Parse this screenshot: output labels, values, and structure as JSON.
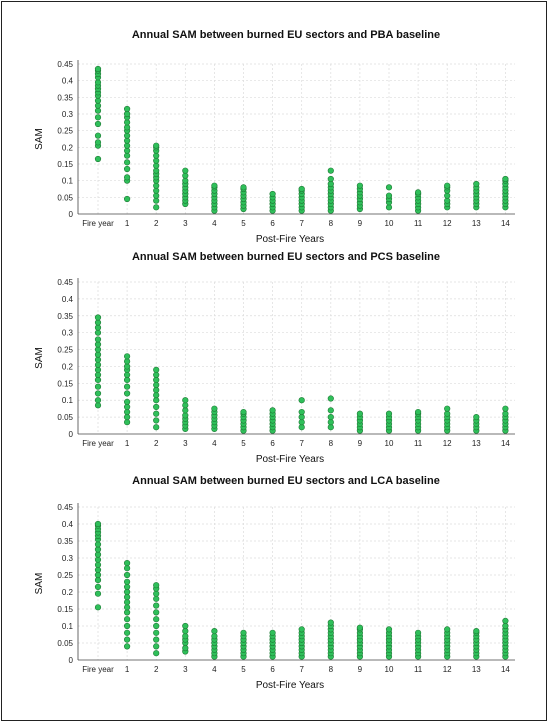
{
  "chart_data": [
    {
      "type": "scatter",
      "title": "Annual SAM between burned EU sectors and PBA baseline",
      "xlabel": "Post-Fire Years",
      "ylabel": "SAM",
      "categories": [
        "Fire year",
        "1",
        "2",
        "3",
        "4",
        "5",
        "6",
        "7",
        "8",
        "9",
        "10",
        "11",
        "12",
        "13",
        "14"
      ],
      "y_ticks": [
        "0",
        "0.05",
        "0.1",
        "0.15",
        "0.2",
        "0.25",
        "0.3",
        "0.35",
        "0.4",
        "0.45"
      ],
      "ylim": [
        0,
        0.45
      ],
      "grid": true,
      "points": [
        [
          0.165,
          0.205,
          0.215,
          0.235,
          0.27,
          0.29,
          0.31,
          0.325,
          0.34,
          0.355,
          0.365,
          0.375,
          0.385,
          0.395,
          0.41,
          0.42,
          0.43,
          0.435
        ],
        [
          0.045,
          0.1,
          0.11,
          0.135,
          0.155,
          0.175,
          0.19,
          0.205,
          0.22,
          0.235,
          0.25,
          0.26,
          0.275,
          0.29,
          0.3,
          0.315
        ],
        [
          0.02,
          0.04,
          0.055,
          0.07,
          0.085,
          0.1,
          0.11,
          0.12,
          0.13,
          0.145,
          0.16,
          0.175,
          0.19,
          0.2,
          0.205
        ],
        [
          0.03,
          0.04,
          0.05,
          0.06,
          0.07,
          0.08,
          0.09,
          0.1,
          0.115,
          0.13
        ],
        [
          0.01,
          0.02,
          0.03,
          0.04,
          0.05,
          0.06,
          0.07,
          0.08,
          0.085
        ],
        [
          0.015,
          0.025,
          0.035,
          0.045,
          0.055,
          0.065,
          0.075,
          0.08
        ],
        [
          0.01,
          0.02,
          0.03,
          0.04,
          0.05,
          0.06
        ],
        [
          0.01,
          0.02,
          0.03,
          0.04,
          0.05,
          0.06,
          0.07,
          0.075
        ],
        [
          0.01,
          0.02,
          0.03,
          0.04,
          0.05,
          0.06,
          0.07,
          0.08,
          0.09,
          0.105,
          0.13
        ],
        [
          0.015,
          0.025,
          0.035,
          0.045,
          0.055,
          0.065,
          0.075,
          0.085
        ],
        [
          0.02,
          0.035,
          0.045,
          0.055,
          0.08
        ],
        [
          0.01,
          0.02,
          0.03,
          0.04,
          0.05,
          0.06,
          0.065
        ],
        [
          0.02,
          0.03,
          0.04,
          0.055,
          0.07,
          0.08,
          0.085
        ],
        [
          0.02,
          0.03,
          0.04,
          0.05,
          0.06,
          0.07,
          0.08,
          0.09
        ],
        [
          0.02,
          0.03,
          0.04,
          0.05,
          0.06,
          0.07,
          0.08,
          0.09,
          0.1,
          0.105
        ]
      ]
    },
    {
      "type": "scatter",
      "title": "Annual SAM between burned EU sectors and PCS baseline",
      "xlabel": "Post-Fire Years",
      "ylabel": "SAM",
      "categories": [
        "Fire year",
        "1",
        "2",
        "3",
        "4",
        "5",
        "6",
        "7",
        "8",
        "9",
        "10",
        "11",
        "12",
        "13",
        "14"
      ],
      "y_ticks": [
        "0",
        "0.05",
        "0.1",
        "0.15",
        "0.2",
        "0.25",
        "0.3",
        "0.35",
        "0.4",
        "0.45"
      ],
      "ylim": [
        0,
        0.45
      ],
      "grid": true,
      "points": [
        [
          0.085,
          0.1,
          0.12,
          0.14,
          0.16,
          0.175,
          0.19,
          0.205,
          0.22,
          0.235,
          0.25,
          0.265,
          0.28,
          0.3,
          0.315,
          0.33,
          0.345
        ],
        [
          0.035,
          0.05,
          0.065,
          0.08,
          0.095,
          0.12,
          0.14,
          0.16,
          0.175,
          0.19,
          0.2,
          0.215,
          0.23
        ],
        [
          0.02,
          0.04,
          0.06,
          0.08,
          0.1,
          0.115,
          0.13,
          0.145,
          0.16,
          0.175,
          0.19
        ],
        [
          0.015,
          0.025,
          0.035,
          0.045,
          0.055,
          0.07,
          0.085,
          0.1
        ],
        [
          0.015,
          0.025,
          0.035,
          0.045,
          0.055,
          0.065,
          0.075
        ],
        [
          0.01,
          0.02,
          0.03,
          0.04,
          0.05,
          0.06,
          0.065
        ],
        [
          0.01,
          0.02,
          0.03,
          0.04,
          0.05,
          0.06,
          0.07
        ],
        [
          0.02,
          0.035,
          0.05,
          0.065,
          0.1
        ],
        [
          0.02,
          0.035,
          0.05,
          0.07,
          0.105
        ],
        [
          0.01,
          0.02,
          0.03,
          0.04,
          0.05,
          0.06
        ],
        [
          0.01,
          0.02,
          0.03,
          0.04,
          0.05,
          0.06
        ],
        [
          0.01,
          0.02,
          0.03,
          0.04,
          0.05,
          0.06,
          0.065
        ],
        [
          0.01,
          0.02,
          0.03,
          0.04,
          0.05,
          0.06,
          0.075
        ],
        [
          0.01,
          0.02,
          0.03,
          0.04,
          0.05
        ],
        [
          0.01,
          0.02,
          0.03,
          0.04,
          0.05,
          0.06,
          0.075
        ]
      ]
    },
    {
      "type": "scatter",
      "title": "Annual SAM between burned EU sectors and LCA baseline",
      "xlabel": "Post-Fire Years",
      "ylabel": "SAM",
      "categories": [
        "Fire year",
        "1",
        "2",
        "3",
        "4",
        "5",
        "6",
        "7",
        "8",
        "9",
        "10",
        "11",
        "12",
        "13",
        "14"
      ],
      "y_ticks": [
        "0",
        "0.05",
        "0.1",
        "0.15",
        "0.2",
        "0.25",
        "0.3",
        "0.35",
        "0.4",
        "0.45"
      ],
      "ylim": [
        0,
        0.45
      ],
      "grid": true,
      "points": [
        [
          0.155,
          0.195,
          0.215,
          0.235,
          0.25,
          0.265,
          0.28,
          0.295,
          0.31,
          0.325,
          0.34,
          0.355,
          0.365,
          0.375,
          0.385,
          0.395,
          0.4
        ],
        [
          0.04,
          0.06,
          0.08,
          0.1,
          0.12,
          0.14,
          0.155,
          0.17,
          0.185,
          0.2,
          0.215,
          0.23,
          0.25,
          0.27,
          0.285
        ],
        [
          0.02,
          0.04,
          0.06,
          0.08,
          0.1,
          0.12,
          0.14,
          0.16,
          0.18,
          0.195,
          0.21,
          0.22
        ],
        [
          0.025,
          0.035,
          0.05,
          0.06,
          0.07,
          0.085,
          0.1
        ],
        [
          0.01,
          0.02,
          0.03,
          0.04,
          0.05,
          0.06,
          0.07,
          0.085
        ],
        [
          0.01,
          0.02,
          0.03,
          0.04,
          0.05,
          0.06,
          0.07,
          0.08
        ],
        [
          0.01,
          0.02,
          0.03,
          0.04,
          0.05,
          0.06,
          0.07,
          0.08
        ],
        [
          0.01,
          0.02,
          0.03,
          0.04,
          0.05,
          0.06,
          0.07,
          0.08,
          0.09
        ],
        [
          0.01,
          0.02,
          0.03,
          0.04,
          0.05,
          0.06,
          0.07,
          0.08,
          0.09,
          0.1,
          0.11
        ],
        [
          0.01,
          0.02,
          0.03,
          0.04,
          0.05,
          0.06,
          0.07,
          0.08,
          0.09,
          0.095
        ],
        [
          0.01,
          0.02,
          0.03,
          0.04,
          0.05,
          0.06,
          0.07,
          0.08,
          0.09
        ],
        [
          0.01,
          0.02,
          0.03,
          0.04,
          0.05,
          0.06,
          0.07,
          0.08
        ],
        [
          0.01,
          0.02,
          0.03,
          0.04,
          0.05,
          0.06,
          0.07,
          0.08,
          0.09
        ],
        [
          0.01,
          0.02,
          0.03,
          0.04,
          0.05,
          0.06,
          0.07,
          0.08,
          0.085
        ],
        [
          0.01,
          0.02,
          0.03,
          0.04,
          0.05,
          0.06,
          0.07,
          0.08,
          0.09,
          0.1,
          0.115
        ]
      ]
    }
  ],
  "colors": {
    "point_fill": "#2fbf5a",
    "point_stroke": "#1e7a35",
    "grid": "#dcdcdc"
  }
}
